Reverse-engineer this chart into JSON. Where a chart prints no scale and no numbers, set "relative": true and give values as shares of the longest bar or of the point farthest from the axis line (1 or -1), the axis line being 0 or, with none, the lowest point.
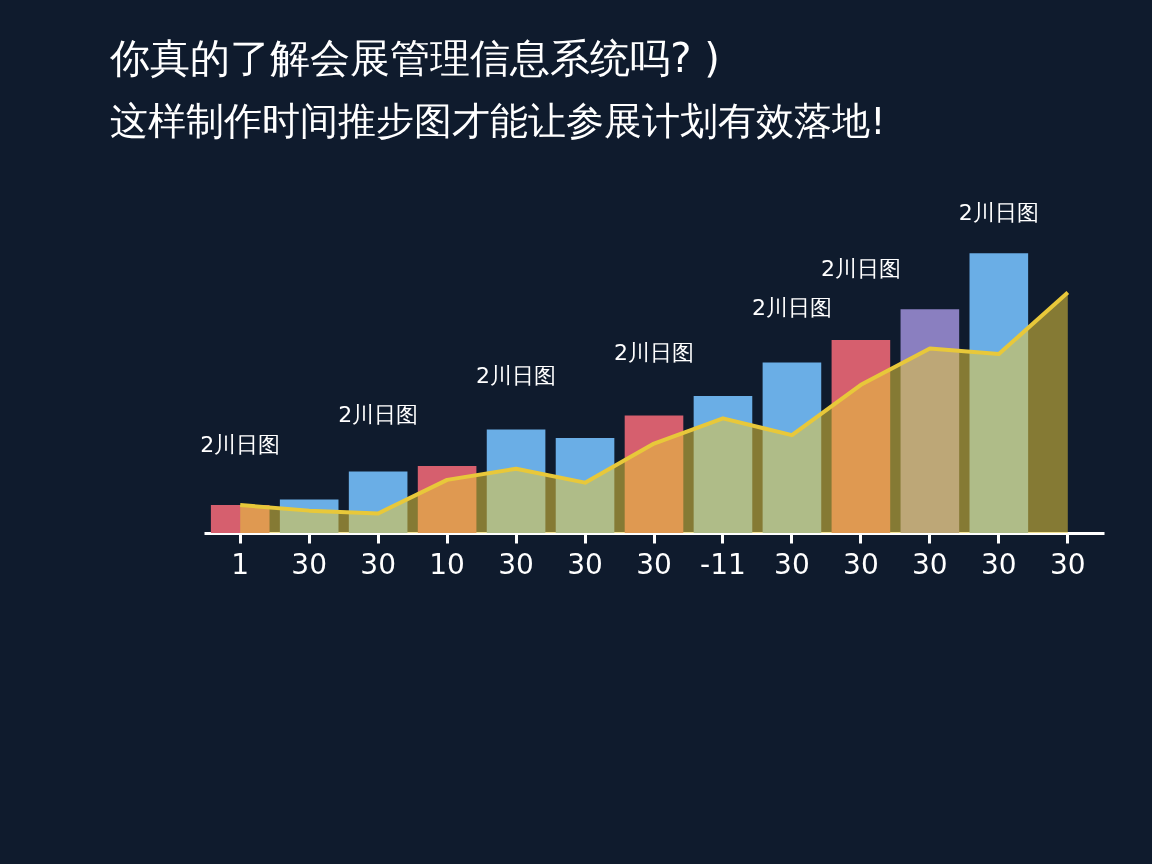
{
  "chart_data": {
    "type": "bar",
    "title": "你真的了解会展管理信息系统吗?  )",
    "subtitle": "这样制作时间推步图才能让参展计划有效落地!",
    "relative": true,
    "categories": [
      "1",
      "30",
      "30",
      "10",
      "30",
      "30",
      "30",
      "-11",
      "30",
      "30",
      "30",
      "30",
      "30"
    ],
    "series": [
      {
        "values": [
          0.1,
          0.12,
          0.22,
          0.24,
          0.37,
          0.34,
          0.42,
          0.49,
          0.61,
          0.69,
          0.8,
          1.0,
          null
        ],
        "colors": [
          "#d65f6e",
          "#6aaee6",
          "#6aaee6",
          "#d65f6e",
          "#6aaee6",
          "#6aaee6",
          "#d65f6e",
          "#6aaee6",
          "#6aaee6",
          "#d65f6e",
          "#8a7fc0",
          "#6aaee6",
          "#6aaee6"
        ]
      },
      {
        "type": "area",
        "values": [
          0.1,
          0.08,
          0.07,
          0.19,
          0.23,
          0.18,
          0.32,
          0.41,
          0.35,
          0.53,
          0.66,
          0.64,
          0.86
        ],
        "color": "#e8c83a"
      }
    ],
    "annotations": [
      "2川日图",
      "2川日图",
      "2川日图",
      "2川日图",
      "2川日图",
      "2川日图",
      "2川日图"
    ]
  }
}
